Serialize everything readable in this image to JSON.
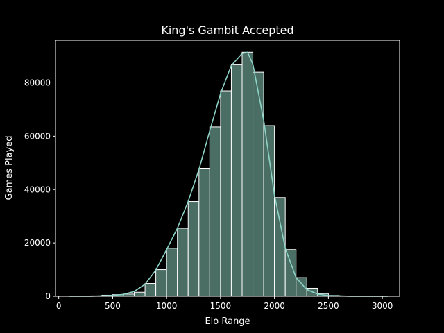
{
  "chart_data": {
    "type": "histogram",
    "title": "King's Gambit Accepted",
    "xlabel": "Elo Range",
    "ylabel": "Games Played",
    "xlim": [
      -30,
      3160
    ],
    "ylim": [
      0,
      96000
    ],
    "xticks": [
      0,
      500,
      1000,
      1500,
      2000,
      2500,
      3000
    ],
    "yticks": [
      0,
      20000,
      40000,
      60000,
      80000
    ],
    "grid": false,
    "legend": "none",
    "bins": [
      {
        "x0": 0,
        "x1": 100,
        "count": 0
      },
      {
        "x0": 100,
        "x1": 200,
        "count": 20
      },
      {
        "x0": 200,
        "x1": 300,
        "count": 60
      },
      {
        "x0": 300,
        "x1": 400,
        "count": 150
      },
      {
        "x0": 400,
        "x1": 500,
        "count": 400
      },
      {
        "x0": 500,
        "x1": 600,
        "count": 600
      },
      {
        "x0": 600,
        "x1": 700,
        "count": 800
      },
      {
        "x0": 700,
        "x1": 800,
        "count": 1500
      },
      {
        "x0": 800,
        "x1": 900,
        "count": 4800
      },
      {
        "x0": 900,
        "x1": 1000,
        "count": 10000
      },
      {
        "x0": 1000,
        "x1": 1100,
        "count": 18000
      },
      {
        "x0": 1100,
        "x1": 1200,
        "count": 25500
      },
      {
        "x0": 1200,
        "x1": 1300,
        "count": 35500
      },
      {
        "x0": 1300,
        "x1": 1400,
        "count": 48000
      },
      {
        "x0": 1400,
        "x1": 1500,
        "count": 63500
      },
      {
        "x0": 1500,
        "x1": 1600,
        "count": 77000
      },
      {
        "x0": 1600,
        "x1": 1700,
        "count": 87000
      },
      {
        "x0": 1700,
        "x1": 1800,
        "count": 91500
      },
      {
        "x0": 1800,
        "x1": 1900,
        "count": 84000
      },
      {
        "x0": 1900,
        "x1": 2000,
        "count": 64000
      },
      {
        "x0": 2000,
        "x1": 2100,
        "count": 37000
      },
      {
        "x0": 2100,
        "x1": 2200,
        "count": 17500
      },
      {
        "x0": 2200,
        "x1": 2300,
        "count": 7000
      },
      {
        "x0": 2300,
        "x1": 2400,
        "count": 3000
      },
      {
        "x0": 2400,
        "x1": 2500,
        "count": 1000
      },
      {
        "x0": 2500,
        "x1": 2600,
        "count": 300
      },
      {
        "x0": 2600,
        "x1": 2700,
        "count": 100
      },
      {
        "x0": 2700,
        "x1": 2800,
        "count": 40
      },
      {
        "x0": 2800,
        "x1": 2900,
        "count": 15
      },
      {
        "x0": 2900,
        "x1": 3000,
        "count": 5
      },
      {
        "x0": 3000,
        "x1": 3100,
        "count": 0
      }
    ],
    "kde": {
      "x": [
        100,
        300,
        500,
        600,
        700,
        800,
        900,
        1000,
        1100,
        1200,
        1300,
        1400,
        1500,
        1600,
        1700,
        1750,
        1800,
        1900,
        2000,
        2100,
        2200,
        2300,
        2400,
        2500,
        2700,
        3050
      ],
      "y": [
        0,
        0,
        300,
        700,
        1800,
        4500,
        9800,
        17500,
        25500,
        35500,
        47500,
        62000,
        76000,
        86500,
        91000,
        91500,
        87000,
        66000,
        38000,
        18000,
        7000,
        2500,
        800,
        250,
        30,
        0
      ]
    },
    "colors": {
      "background": "#000000",
      "bar_fill": "#4a6e64",
      "bar_edge": "#ffffff",
      "kde_line": "#8dd3c7",
      "axes": "#ffffff",
      "text": "#ffffff"
    }
  }
}
